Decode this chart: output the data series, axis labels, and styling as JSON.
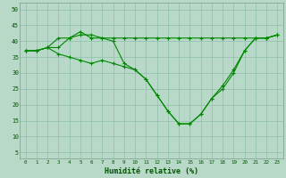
{
  "xlabel": "Humidité relative (%)",
  "ylabel": "",
  "bg_color": "#b8d8c8",
  "grid_color": "#8fbfaf",
  "line_color": "#008800",
  "marker": "+",
  "xlim": [
    -0.5,
    23.5
  ],
  "ylim": [
    3,
    52
  ],
  "yticks": [
    5,
    10,
    15,
    20,
    25,
    30,
    35,
    40,
    45,
    50
  ],
  "xticks": [
    0,
    1,
    2,
    3,
    4,
    5,
    6,
    7,
    8,
    9,
    10,
    11,
    12,
    13,
    14,
    15,
    16,
    17,
    18,
    19,
    20,
    21,
    22,
    23
  ],
  "series": [
    [
      37,
      37,
      38,
      41,
      41,
      43,
      41,
      41,
      41,
      41,
      41,
      41,
      41,
      41,
      41,
      41,
      41,
      41,
      41,
      41,
      41,
      41,
      41,
      42
    ],
    [
      37,
      37,
      38,
      38,
      41,
      42,
      42,
      41,
      40,
      33,
      31,
      28,
      23,
      18,
      14,
      14,
      17,
      22,
      26,
      31,
      37,
      41,
      41,
      42
    ],
    [
      37,
      37,
      38,
      36,
      35,
      34,
      33,
      34,
      33,
      32,
      31,
      28,
      23,
      18,
      14,
      14,
      17,
      22,
      25,
      30,
      37,
      41,
      41,
      42
    ]
  ]
}
